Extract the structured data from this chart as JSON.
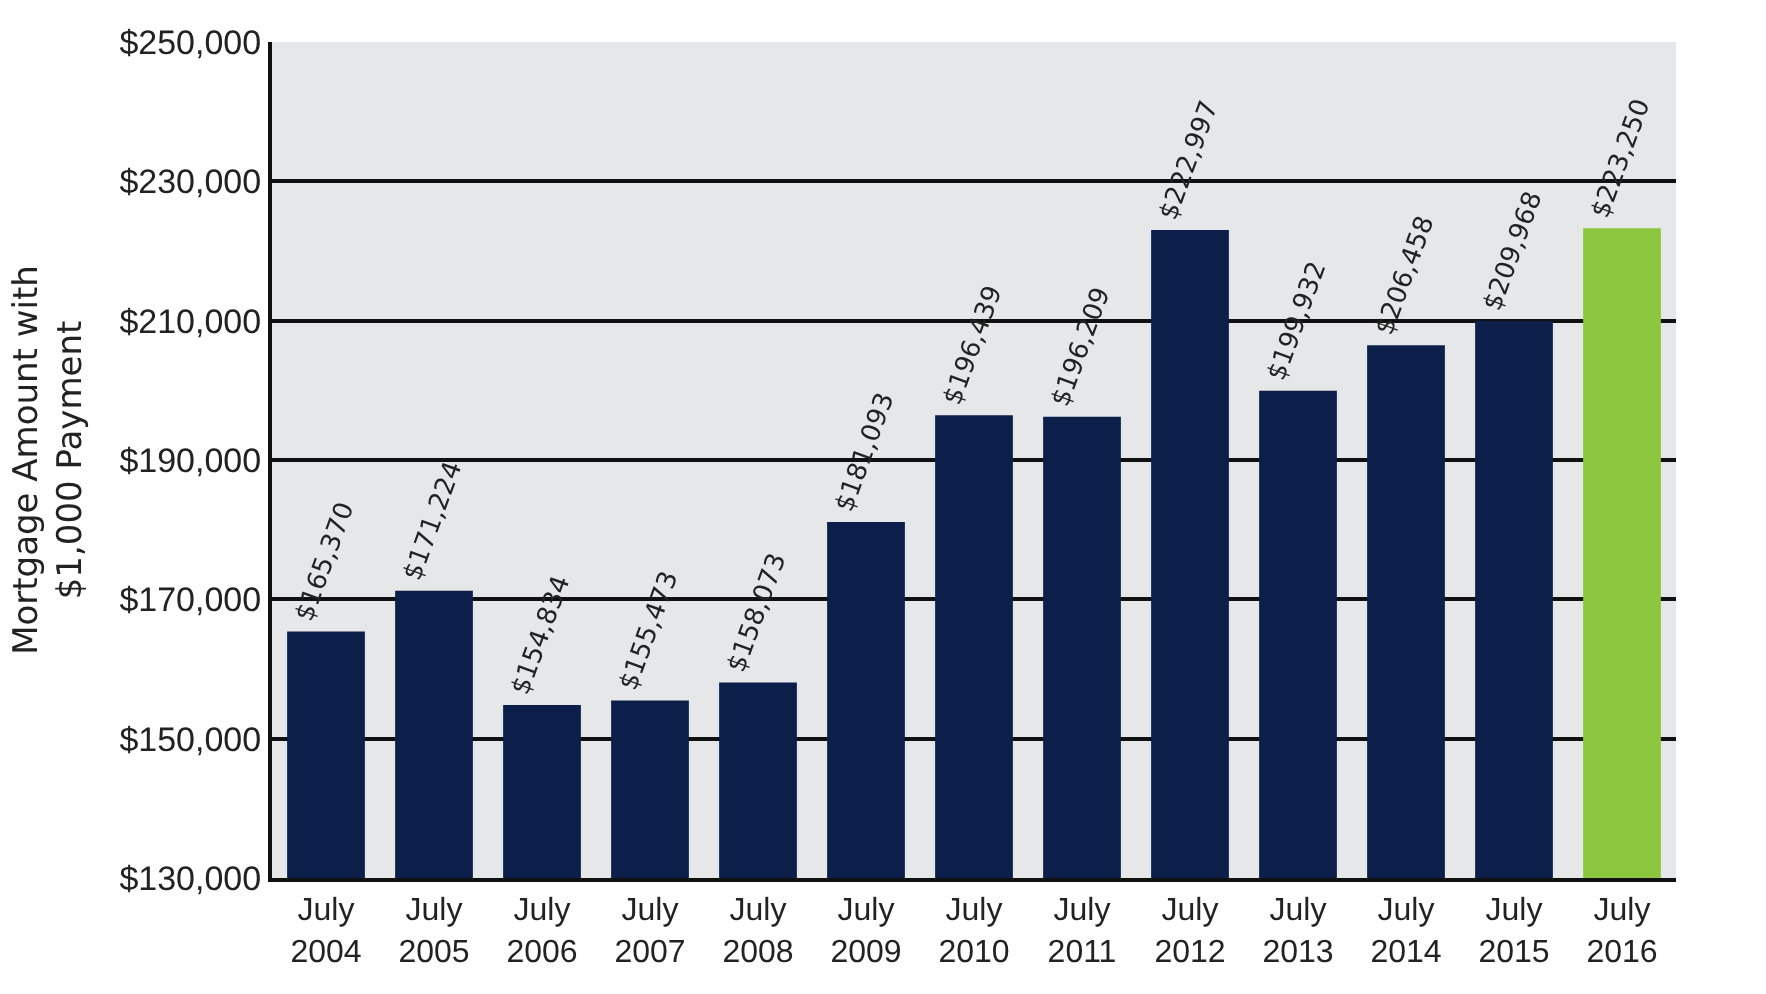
{
  "chart_data": {
    "type": "bar",
    "ylabel": "Mortgage Amount with\n$1,000 Payment",
    "categories": [
      "July 2004",
      "July 2005",
      "July 2006",
      "July 2007",
      "July 2008",
      "July 2009",
      "July 2010",
      "July 2011",
      "July 2012",
      "July 2013",
      "July 2014",
      "July 2015",
      "July 2016"
    ],
    "values": [
      165370,
      171224,
      154834,
      155473,
      158073,
      181093,
      196439,
      196209,
      222997,
      199932,
      206458,
      209968,
      223250
    ],
    "colors": [
      "#0c1f4b",
      "#0c1f4b",
      "#0c1f4b",
      "#0c1f4b",
      "#0c1f4b",
      "#0c1f4b",
      "#0c1f4b",
      "#0c1f4b",
      "#0c1f4b",
      "#0c1f4b",
      "#0c1f4b",
      "#0c1f4b",
      "#8dc63f"
    ],
    "value_labels": [
      "$165,370",
      "$171,224",
      "$154,834",
      "$155,473",
      "$158,073",
      "$181,093",
      "$196,439",
      "$196,209",
      "$222,997",
      "$199,932",
      "$206,458",
      "$209,968",
      "$223,250"
    ],
    "ylim": [
      130000,
      250000
    ],
    "yticks": [
      {
        "value": 130000,
        "label": "$130,000"
      },
      {
        "value": 150000,
        "label": "$150,000"
      },
      {
        "value": 170000,
        "label": "$170,000"
      },
      {
        "value": 190000,
        "label": "$190,000"
      },
      {
        "value": 210000,
        "label": "$210,000"
      },
      {
        "value": 230000,
        "label": "$230,000"
      },
      {
        "value": 250000,
        "label": "$250,000"
      }
    ],
    "grid": "y"
  }
}
